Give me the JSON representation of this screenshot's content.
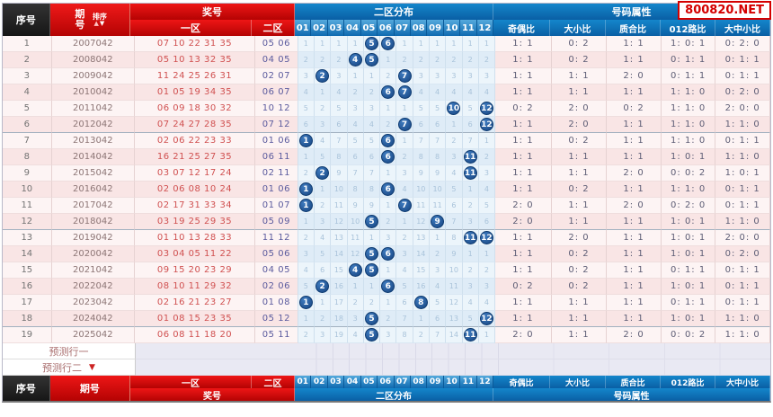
{
  "watermark": "800820.NET",
  "icons": {
    "sort_asc": "▲",
    "sort_desc": "▼",
    "dropdown_arrow": "▼"
  },
  "colors": {
    "header_red": "#cc0000",
    "header_blue": "#0e72b8",
    "header_black": "#262626",
    "ball_blue": "#16437f",
    "zone1_text": "#d05050",
    "zone2_text": "#5b5b9e",
    "watermark_red": "#d40000"
  },
  "header": {
    "serial": "序号",
    "period": "期号",
    "sort": "排序",
    "prize": "奖号",
    "zone1": "一区",
    "zone2": "二区",
    "dist_title": "二区分布",
    "dist_cols": [
      "01",
      "02",
      "03",
      "04",
      "05",
      "06",
      "07",
      "08",
      "09",
      "10",
      "11",
      "12"
    ],
    "attr_title": "号码属性",
    "attr_cols": [
      "奇偶比",
      "大小比",
      "质合比",
      "012路比",
      "大中小比"
    ]
  },
  "predictions": [
    {
      "label": "预测行一"
    },
    {
      "label": "预测行二"
    }
  ],
  "footer": {
    "serial": "序号",
    "period": "期号",
    "zone1": "一区",
    "zone2": "二区",
    "prize": "奖号",
    "dist_title": "二区分布",
    "attr_title": "号码属性"
  },
  "rows": [
    {
      "idx": "1",
      "period": "2007042",
      "zone1": "07 10 22 31 35",
      "zone2": "05 06",
      "balls": [
        5,
        6
      ],
      "miss": [
        1,
        1,
        1,
        1,
        0,
        0,
        1,
        1,
        1,
        1,
        1,
        1
      ],
      "ratios": [
        "1: 1",
        "0: 2",
        "1: 1",
        "1: 0: 1",
        "0: 2: 0"
      ]
    },
    {
      "idx": "2",
      "period": "2008042",
      "zone1": "05 10 13 32 35",
      "zone2": "04 05",
      "balls": [
        4,
        5
      ],
      "miss": [
        2,
        2,
        2,
        0,
        0,
        1,
        2,
        2,
        2,
        2,
        2,
        2
      ],
      "ratios": [
        "1: 1",
        "0: 2",
        "1: 1",
        "0: 1: 1",
        "0: 1: 1"
      ]
    },
    {
      "idx": "3",
      "period": "2009042",
      "zone1": "11 24 25 26 31",
      "zone2": "02 07",
      "balls": [
        2,
        7
      ],
      "miss": [
        3,
        0,
        3,
        1,
        1,
        2,
        0,
        3,
        3,
        3,
        3,
        3
      ],
      "ratios": [
        "1: 1",
        "1: 1",
        "2: 0",
        "0: 1: 1",
        "0: 1: 1"
      ]
    },
    {
      "idx": "4",
      "period": "2010042",
      "zone1": "01 05 19 34 35",
      "zone2": "06 07",
      "balls": [
        6,
        7
      ],
      "miss": [
        4,
        1,
        4,
        2,
        2,
        0,
        0,
        4,
        4,
        4,
        4,
        4
      ],
      "ratios": [
        "1: 1",
        "1: 1",
        "1: 1",
        "1: 1: 0",
        "0: 2: 0"
      ]
    },
    {
      "idx": "5",
      "period": "2011042",
      "zone1": "06 09 18 30 32",
      "zone2": "10 12",
      "balls": [
        10,
        12
      ],
      "miss": [
        5,
        2,
        5,
        3,
        3,
        1,
        1,
        5,
        5,
        0,
        5,
        0
      ],
      "ratios": [
        "0: 2",
        "2: 0",
        "0: 2",
        "1: 1: 0",
        "2: 0: 0"
      ]
    },
    {
      "idx": "6",
      "period": "2012042",
      "zone1": "07 24 27 28 35",
      "zone2": "07 12",
      "balls": [
        7,
        12
      ],
      "miss": [
        6,
        3,
        6,
        4,
        4,
        2,
        0,
        6,
        6,
        1,
        6,
        0
      ],
      "ratios": [
        "1: 1",
        "2: 0",
        "1: 1",
        "1: 1: 0",
        "1: 1: 0"
      ]
    },
    {
      "idx": "7",
      "period": "2013042",
      "zone1": "02 06 22 23 33",
      "zone2": "01 06",
      "balls": [
        1,
        6
      ],
      "miss": [
        0,
        4,
        7,
        5,
        5,
        0,
        1,
        7,
        7,
        2,
        7,
        1
      ],
      "ratios": [
        "1: 1",
        "0: 2",
        "1: 1",
        "1: 1: 0",
        "0: 1: 1"
      ]
    },
    {
      "idx": "8",
      "period": "2014042",
      "zone1": "16 21 25 27 35",
      "zone2": "06 11",
      "balls": [
        6,
        11
      ],
      "miss": [
        1,
        5,
        8,
        6,
        6,
        0,
        2,
        8,
        8,
        3,
        0,
        2
      ],
      "ratios": [
        "1: 1",
        "1: 1",
        "1: 1",
        "1: 0: 1",
        "1: 1: 0"
      ]
    },
    {
      "idx": "9",
      "period": "2015042",
      "zone1": "03 07 12 17 24",
      "zone2": "02 11",
      "balls": [
        2,
        11
      ],
      "miss": [
        2,
        0,
        9,
        7,
        7,
        1,
        3,
        9,
        9,
        4,
        0,
        3
      ],
      "ratios": [
        "1: 1",
        "1: 1",
        "2: 0",
        "0: 0: 2",
        "1: 0: 1"
      ]
    },
    {
      "idx": "10",
      "period": "2016042",
      "zone1": "02 06 08 10 24",
      "zone2": "01 06",
      "balls": [
        1,
        6
      ],
      "miss": [
        0,
        1,
        10,
        8,
        8,
        0,
        4,
        10,
        10,
        5,
        1,
        4
      ],
      "ratios": [
        "1: 1",
        "0: 2",
        "1: 1",
        "1: 1: 0",
        "0: 1: 1"
      ]
    },
    {
      "idx": "11",
      "period": "2017042",
      "zone1": "02 17 31 33 34",
      "zone2": "01 07",
      "balls": [
        1,
        7
      ],
      "miss": [
        0,
        2,
        11,
        9,
        9,
        1,
        0,
        11,
        11,
        6,
        2,
        5
      ],
      "ratios": [
        "2: 0",
        "1: 1",
        "2: 0",
        "0: 2: 0",
        "0: 1: 1"
      ]
    },
    {
      "idx": "12",
      "period": "2018042",
      "zone1": "03 19 25 29 35",
      "zone2": "05 09",
      "balls": [
        5,
        9
      ],
      "miss": [
        1,
        3,
        12,
        10,
        0,
        2,
        1,
        12,
        0,
        7,
        3,
        6
      ],
      "ratios": [
        "2: 0",
        "1: 1",
        "1: 1",
        "1: 0: 1",
        "1: 1: 0"
      ]
    },
    {
      "idx": "13",
      "period": "2019042",
      "zone1": "01 10 13 28 33",
      "zone2": "11 12",
      "balls": [
        11,
        12
      ],
      "miss": [
        2,
        4,
        13,
        11,
        1,
        3,
        2,
        13,
        1,
        8,
        0,
        0
      ],
      "ratios": [
        "1: 1",
        "2: 0",
        "1: 1",
        "1: 0: 1",
        "2: 0: 0"
      ]
    },
    {
      "idx": "14",
      "period": "2020042",
      "zone1": "03 04 05 11 22",
      "zone2": "05 06",
      "balls": [
        5,
        6
      ],
      "miss": [
        3,
        5,
        14,
        12,
        0,
        0,
        3,
        14,
        2,
        9,
        1,
        1
      ],
      "ratios": [
        "1: 1",
        "0: 2",
        "1: 1",
        "1: 0: 1",
        "0: 2: 0"
      ]
    },
    {
      "idx": "15",
      "period": "2021042",
      "zone1": "09 15 20 23 29",
      "zone2": "04 05",
      "balls": [
        4,
        5
      ],
      "miss": [
        4,
        6,
        15,
        0,
        0,
        1,
        4,
        15,
        3,
        10,
        2,
        2
      ],
      "ratios": [
        "1: 1",
        "0: 2",
        "1: 1",
        "0: 1: 1",
        "0: 1: 1"
      ]
    },
    {
      "idx": "16",
      "period": "2022042",
      "zone1": "08 10 11 29 32",
      "zone2": "02 06",
      "balls": [
        2,
        6
      ],
      "miss": [
        5,
        0,
        16,
        1,
        1,
        0,
        5,
        16,
        4,
        11,
        3,
        3
      ],
      "ratios": [
        "0: 2",
        "0: 2",
        "1: 1",
        "1: 0: 1",
        "0: 1: 1"
      ]
    },
    {
      "idx": "17",
      "period": "2023042",
      "zone1": "02 16 21 23 27",
      "zone2": "01 08",
      "balls": [
        1,
        8
      ],
      "miss": [
        0,
        1,
        17,
        2,
        2,
        1,
        6,
        0,
        5,
        12,
        4,
        4
      ],
      "ratios": [
        "1: 1",
        "1: 1",
        "1: 1",
        "0: 1: 1",
        "0: 1: 1"
      ]
    },
    {
      "idx": "18",
      "period": "2024042",
      "zone1": "01 08 15 23 35",
      "zone2": "05 12",
      "balls": [
        5,
        12
      ],
      "miss": [
        1,
        2,
        18,
        3,
        0,
        2,
        7,
        1,
        6,
        13,
        5,
        0
      ],
      "ratios": [
        "1: 1",
        "1: 1",
        "1: 1",
        "1: 0: 1",
        "1: 1: 0"
      ]
    },
    {
      "idx": "19",
      "period": "2025042",
      "zone1": "06 08 11 18 20",
      "zone2": "05 11",
      "balls": [
        5,
        11
      ],
      "miss": [
        2,
        3,
        19,
        4,
        0,
        3,
        8,
        2,
        7,
        14,
        0,
        1
      ],
      "ratios": [
        "2: 0",
        "1: 1",
        "2: 0",
        "0: 0: 2",
        "1: 1: 0"
      ]
    }
  ]
}
